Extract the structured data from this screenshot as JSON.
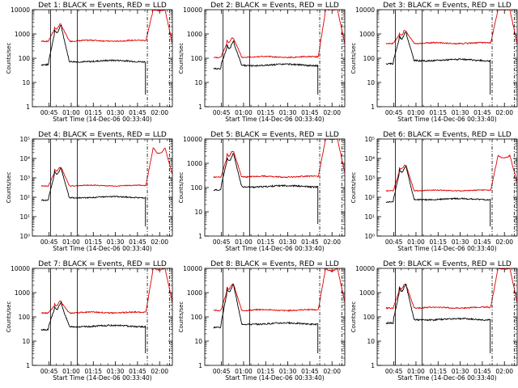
{
  "window": {
    "width": 640,
    "height": 480
  },
  "chart_data": [
    {
      "type": "line",
      "title": "Det 1: BLACK = Events, RED = LLD",
      "ylabel": "Counts/sec",
      "xlabel": "Start Time (14-Dec-06 00:33:40)",
      "x_tick_labels": [
        "00:45",
        "01:00",
        "01:15",
        "01:30",
        "01:45",
        "02:00"
      ],
      "y_tick_labels": [
        "1",
        "10",
        "100",
        "1000",
        "10000"
      ],
      "ylim": [
        1,
        10000
      ],
      "yscale": "log",
      "x_range_minutes": [
        0,
        95
      ],
      "series": [
        {
          "name": "BLACK = Events",
          "color": "#000000"
        },
        {
          "name": "RED = LLD",
          "color": "#e00000"
        }
      ]
    },
    {
      "type": "line",
      "title": "Det 2: BLACK = Events, RED = LLD",
      "ylabel": "Counts/sec",
      "xlabel": "Start Time (14-Dec-06 00:33:40)",
      "x_tick_labels": [
        "00:45",
        "01:00",
        "01:15",
        "01:30",
        "01:45",
        "02:00"
      ],
      "y_tick_labels": [
        "1",
        "10",
        "100",
        "1000",
        "10000"
      ],
      "ylim": [
        1,
        10000
      ],
      "yscale": "log",
      "x_range_minutes": [
        0,
        95
      ],
      "series": [
        {
          "name": "BLACK = Events",
          "color": "#000000"
        },
        {
          "name": "RED = LLD",
          "color": "#e00000"
        }
      ]
    },
    {
      "type": "line",
      "title": "Det 3: BLACK = Events, RED = LLD",
      "ylabel": "Counts/sec",
      "xlabel": "Start Time (14-Dec-06 00:33:40)",
      "x_tick_labels": [
        "00:45",
        "01:00",
        "01:15",
        "01:30",
        "01:45",
        "02:00"
      ],
      "y_tick_labels": [
        "1",
        "10",
        "100",
        "1000",
        "10000"
      ],
      "ylim": [
        1,
        10000
      ],
      "yscale": "log",
      "x_range_minutes": [
        0,
        95
      ],
      "series": [
        {
          "name": "BLACK = Events",
          "color": "#000000"
        },
        {
          "name": "RED = LLD",
          "color": "#e00000"
        }
      ]
    },
    {
      "type": "line",
      "title": "Det 4: BLACK = Events, RED = LLD",
      "ylabel": "Counts/sec",
      "xlabel": "Start Time (14-Dec-06 00:33:40)",
      "x_tick_labels": [
        "00:45",
        "01:00",
        "01:15",
        "01:30",
        "01:45",
        "02:00"
      ],
      "y_tick_labels": [
        "10⁰",
        "10¹",
        "10²",
        "10³",
        "10⁴",
        "10⁵"
      ],
      "ylim": [
        1,
        100000
      ],
      "yscale": "log",
      "x_range_minutes": [
        0,
        95
      ],
      "series": [
        {
          "name": "BLACK = Events",
          "color": "#000000"
        },
        {
          "name": "RED = LLD",
          "color": "#e00000"
        }
      ]
    },
    {
      "type": "line",
      "title": "Det 5: BLACK = Events, RED = LLD",
      "ylabel": "Counts/sec",
      "xlabel": "Start Time (14-Dec-06 00:33:40)",
      "x_tick_labels": [
        "00:45",
        "01:00",
        "01:15",
        "01:30",
        "01:45",
        "02:00"
      ],
      "y_tick_labels": [
        "1",
        "10",
        "100",
        "1000",
        "10000"
      ],
      "ylim": [
        1,
        10000
      ],
      "yscale": "log",
      "x_range_minutes": [
        0,
        95
      ],
      "series": [
        {
          "name": "BLACK = Events",
          "color": "#000000"
        },
        {
          "name": "RED = LLD",
          "color": "#e00000"
        }
      ]
    },
    {
      "type": "line",
      "title": "Det 6: BLACK = Events, RED = LLD",
      "ylabel": "Counts/sec",
      "xlabel": "Start Time (14-Dec-06 00:33:40)",
      "x_tick_labels": [
        "00:45",
        "01:00",
        "01:15",
        "01:30",
        "01:45",
        "02:00"
      ],
      "y_tick_labels": [
        "10⁰",
        "10¹",
        "10²",
        "10³",
        "10⁴",
        "10⁵"
      ],
      "ylim": [
        1,
        100000
      ],
      "yscale": "log",
      "x_range_minutes": [
        0,
        95
      ],
      "series": [
        {
          "name": "BLACK = Events",
          "color": "#000000"
        },
        {
          "name": "RED = LLD",
          "color": "#e00000"
        }
      ]
    },
    {
      "type": "line",
      "title": "Det 7: BLACK = Events, RED = LLD",
      "ylabel": "Counts/sec",
      "xlabel": "Start Time (14-Dec-06 00:33:40)",
      "x_tick_labels": [
        "00:45",
        "01:00",
        "01:15",
        "01:30",
        "01:45",
        "02:00"
      ],
      "y_tick_labels": [
        "1",
        "10",
        "100",
        "1000",
        "10000"
      ],
      "ylim": [
        1,
        10000
      ],
      "yscale": "log",
      "x_range_minutes": [
        0,
        95
      ],
      "series": [
        {
          "name": "BLACK = Events",
          "color": "#000000"
        },
        {
          "name": "RED = LLD",
          "color": "#e00000"
        }
      ]
    },
    {
      "type": "line",
      "title": "Det 8: BLACK = Events, RED = LLD",
      "ylabel": "Counts/sec",
      "xlabel": "Start Time (14-Dec-06 00:33:40)",
      "x_tick_labels": [
        "00:45",
        "01:00",
        "01:15",
        "01:30",
        "01:45",
        "02:00"
      ],
      "y_tick_labels": [
        "1",
        "10",
        "100",
        "1000",
        "10000"
      ],
      "ylim": [
        1,
        10000
      ],
      "yscale": "log",
      "x_range_minutes": [
        0,
        95
      ],
      "series": [
        {
          "name": "BLACK = Events",
          "color": "#000000"
        },
        {
          "name": "RED = LLD",
          "color": "#e00000"
        }
      ]
    },
    {
      "type": "line",
      "title": "Det 9: BLACK = Events, RED = LLD",
      "ylabel": "Counts/sec",
      "xlabel": "Start Time (14-Dec-06 00:33:40)",
      "x_tick_labels": [
        "00:45",
        "01:00",
        "01:15",
        "01:30",
        "01:45",
        "02:00"
      ],
      "y_tick_labels": [
        "1",
        "10",
        "100",
        "1000",
        "10000"
      ],
      "ylim": [
        1,
        10000
      ],
      "yscale": "log",
      "x_range_minutes": [
        0,
        95
      ],
      "series": [
        {
          "name": "BLACK = Events",
          "color": "#000000"
        },
        {
          "name": "RED = LLD",
          "color": "#e00000"
        }
      ]
    }
  ]
}
